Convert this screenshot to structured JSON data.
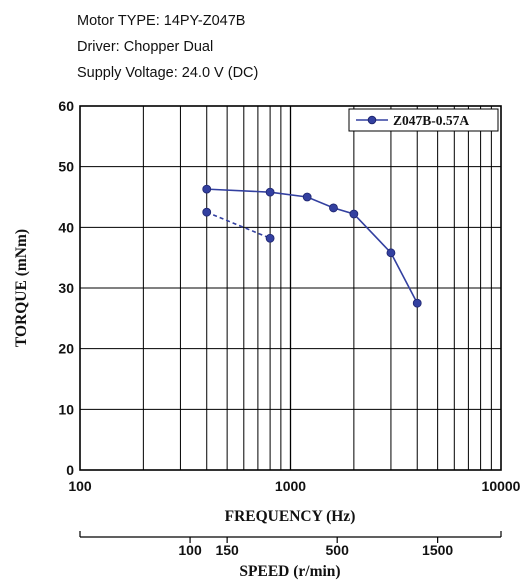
{
  "header": {
    "motor_type": "Motor TYPE: 14PY-Z047B",
    "driver": "Driver: Chopper Dual",
    "supply_voltage": "Supply Voltage: 24.0 V (DC)"
  },
  "chart_data": {
    "type": "line",
    "xlabel": "FREQUENCY (Hz)",
    "ylabel": "TORQUE (mNm)",
    "x_scale": "log",
    "xlim": [
      100,
      10000
    ],
    "ylim": [
      0,
      60
    ],
    "x_ticks": [
      100,
      1000,
      10000
    ],
    "x_tick_labels": [
      "100",
      "1000",
      "10000"
    ],
    "y_ticks": [
      0,
      10,
      20,
      30,
      40,
      50,
      60
    ],
    "y_tick_labels": [
      "0",
      "10",
      "20",
      "30",
      "40",
      "50",
      "60"
    ],
    "grid": true,
    "legend_position": "top-right",
    "series": [
      {
        "name": "Z047B-0.57A",
        "color": "#3340a0",
        "line_style": "solid",
        "x": [
          400,
          800,
          1200,
          1600,
          2000,
          3000,
          4000
        ],
        "y": [
          46.3,
          45.8,
          45.0,
          43.2,
          42.2,
          35.8,
          27.5
        ]
      },
      {
        "color": "#3340a0",
        "line_style": "dashed",
        "x": [
          400,
          800
        ],
        "y": [
          42.5,
          38.2
        ]
      }
    ],
    "secondary_axis": {
      "label": "SPEED (r/min)",
      "ticks": [
        100,
        150,
        500,
        1500
      ],
      "tick_labels": [
        "100",
        "150",
        "500",
        "1500"
      ],
      "min": 30,
      "max": 3000,
      "scale": "log"
    }
  }
}
